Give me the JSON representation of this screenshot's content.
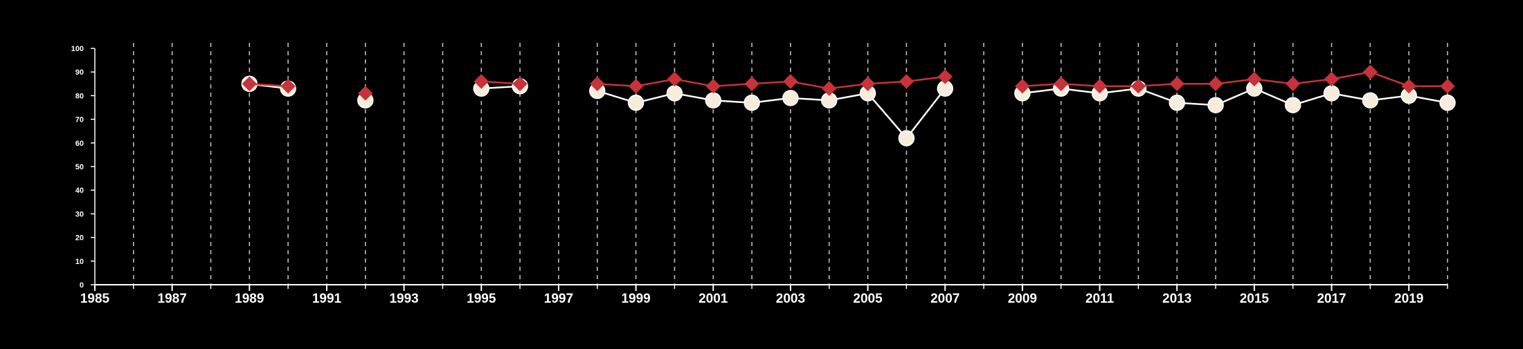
{
  "chart_data": {
    "type": "line",
    "title": "",
    "xlabel": "",
    "ylabel": "",
    "xlim": [
      1985,
      2020
    ],
    "ylim": [
      0,
      100
    ],
    "grid": "vertical dashed",
    "background": "#000000",
    "yticks": [
      "0",
      "10",
      "20",
      "30",
      "40",
      "50",
      "60",
      "70",
      "80",
      "90",
      "100"
    ],
    "xticks": [
      "1985",
      "1987",
      "1989",
      "1991",
      "1993",
      "1995",
      "1997",
      "1999",
      "2001",
      "2003",
      "2005",
      "2007",
      "2009",
      "2011",
      "2013",
      "2015",
      "2017",
      "2019"
    ],
    "series": [
      {
        "marker": "circle",
        "color": "#ffffff",
        "fill": "#f5ecdc",
        "points": [
          [
            1989,
            85
          ],
          [
            1990,
            83
          ],
          null,
          [
            1992,
            78
          ],
          null,
          [
            1995,
            83
          ],
          [
            1996,
            84
          ],
          null,
          [
            1998,
            82
          ],
          [
            1999,
            77
          ],
          [
            2000,
            81
          ],
          [
            2001,
            78
          ],
          [
            2002,
            77
          ],
          [
            2003,
            79
          ],
          [
            2004,
            78
          ],
          [
            2005,
            81
          ],
          [
            2006,
            62
          ],
          [
            2007,
            83
          ],
          null,
          [
            2009,
            81
          ],
          [
            2010,
            83
          ],
          [
            2011,
            81
          ],
          [
            2012,
            83
          ],
          [
            2013,
            77
          ],
          [
            2014,
            76
          ],
          [
            2015,
            83
          ],
          [
            2016,
            76
          ],
          [
            2017,
            81
          ],
          [
            2018,
            78
          ],
          [
            2019,
            80
          ],
          [
            2020,
            77
          ]
        ]
      },
      {
        "marker": "diamond",
        "color": "#c8323a",
        "fill": "#c8323a",
        "points": [
          [
            1989,
            85
          ],
          [
            1990,
            84
          ],
          null,
          [
            1992,
            81
          ],
          null,
          [
            1995,
            86
          ],
          [
            1996,
            85
          ],
          null,
          [
            1998,
            85
          ],
          [
            1999,
            84
          ],
          [
            2000,
            87
          ],
          [
            2001,
            84
          ],
          [
            2002,
            85
          ],
          [
            2003,
            86
          ],
          [
            2004,
            83
          ],
          [
            2005,
            85
          ],
          [
            2006,
            86
          ],
          [
            2007,
            88
          ],
          null,
          [
            2009,
            84
          ],
          [
            2010,
            85
          ],
          [
            2011,
            84
          ],
          [
            2012,
            84
          ],
          [
            2013,
            85
          ],
          [
            2014,
            85
          ],
          [
            2015,
            87
          ],
          [
            2016,
            85
          ],
          [
            2017,
            87
          ],
          [
            2018,
            90
          ],
          [
            2019,
            84
          ],
          [
            2020,
            84
          ]
        ]
      }
    ]
  }
}
